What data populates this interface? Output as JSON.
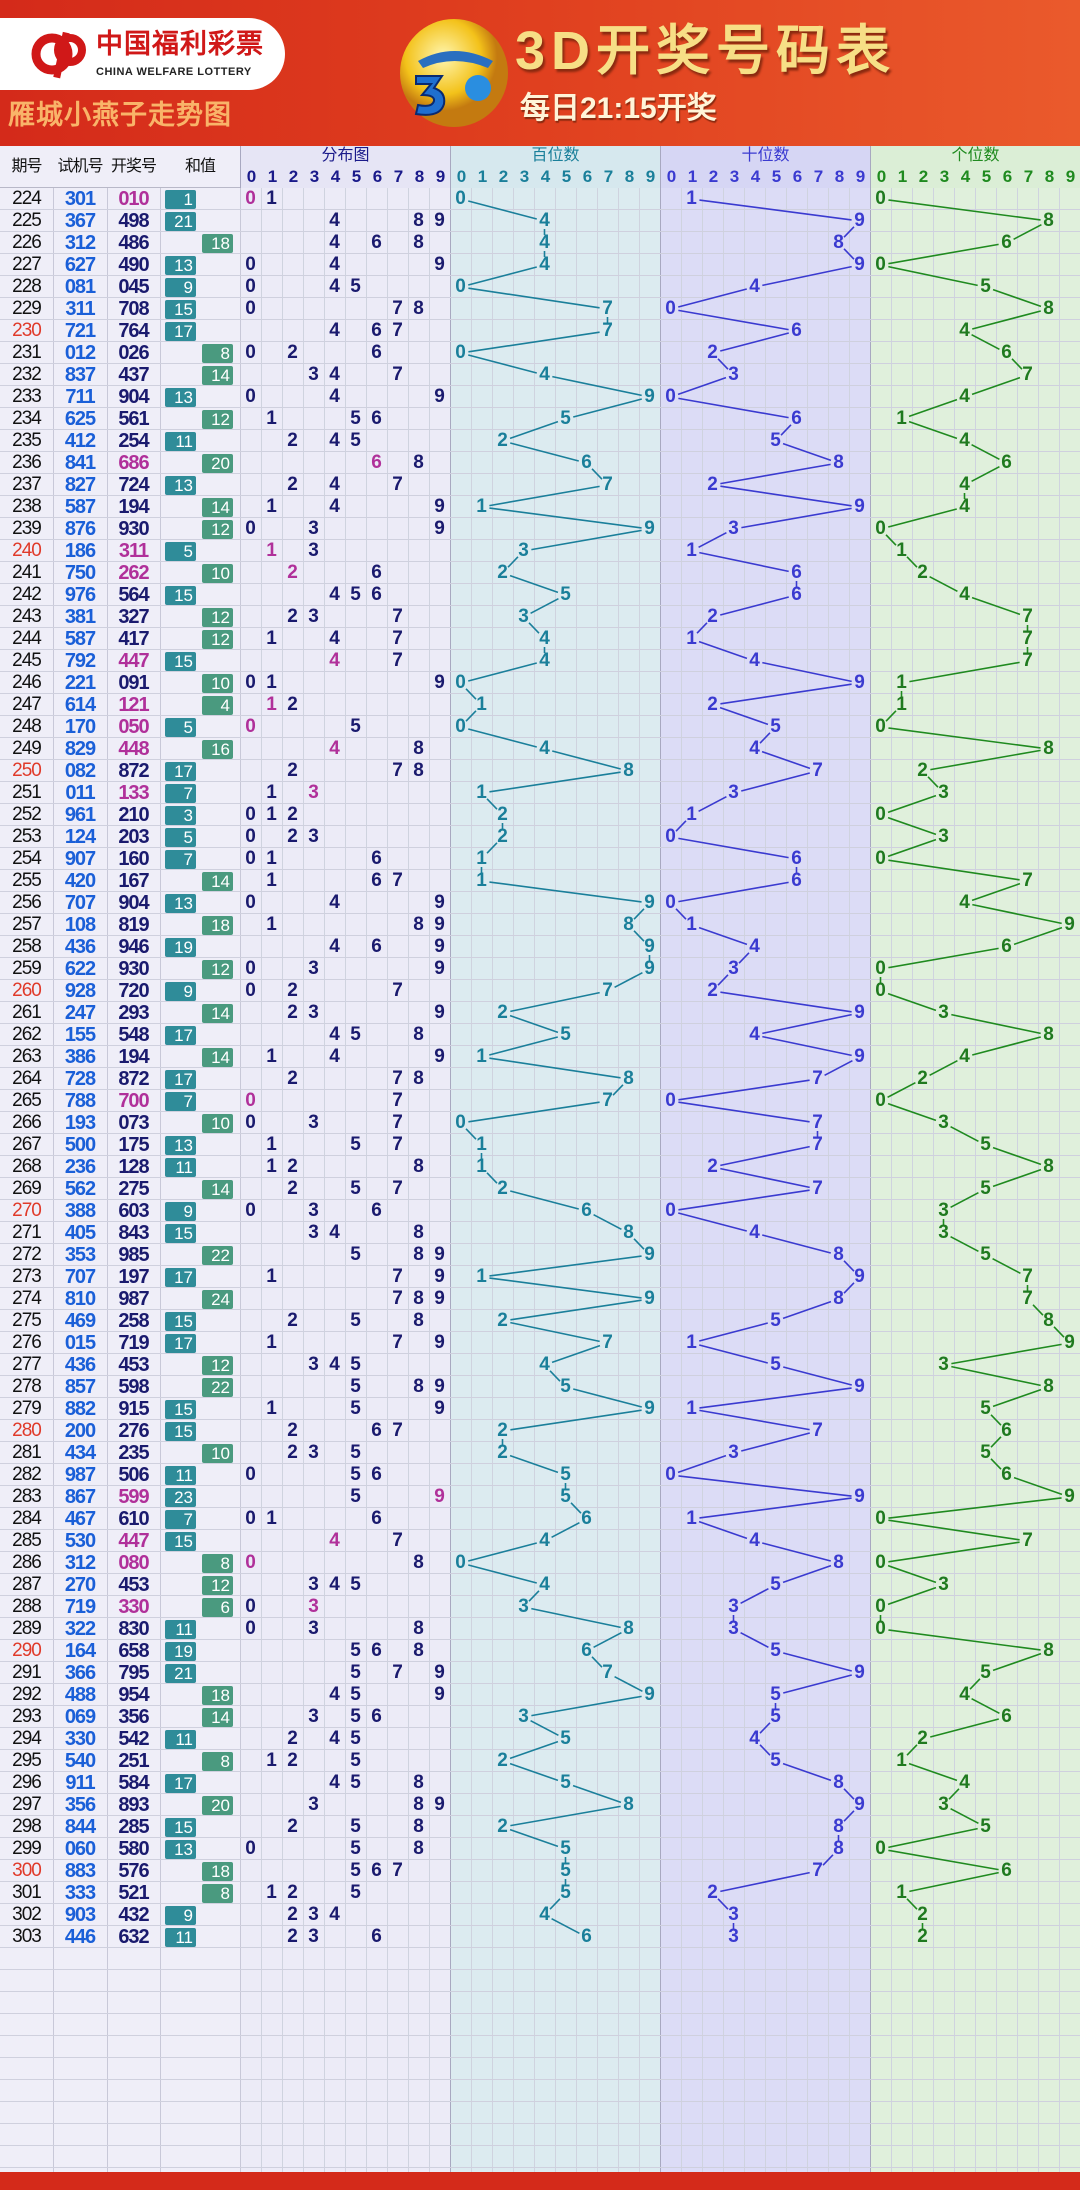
{
  "header": {
    "logo_cn": "中国福利彩票",
    "logo_en": "CHINA WELFARE LOTTERY",
    "slogan": "雁城小燕子走势图",
    "title": "3D开奖号码表",
    "subtitle": "每日21:15开奖"
  },
  "columns": {
    "period": "期号",
    "trial": "试机号",
    "draw": "开奖号",
    "sum": "和值",
    "distribution": "分布图",
    "hundreds": "百位数",
    "tens": "十位数",
    "ones": "个位数"
  },
  "digits": [
    "0",
    "1",
    "2",
    "3",
    "4",
    "5",
    "6",
    "7",
    "8",
    "9"
  ],
  "colors": {
    "header_red": "#d42a1a",
    "hundreds_line": "#1a7f9a",
    "tens_line": "#3a3ad0",
    "ones_line": "#1f8a1f",
    "repeat": "#b0309a",
    "sum_odd": "#2f8c99",
    "sum_even": "#4a9a7f",
    "period_highlight": "#e03a2a"
  },
  "rows": [
    {
      "period": "224",
      "trial": "301",
      "draw": "010",
      "sum": "1"
    },
    {
      "period": "225",
      "trial": "367",
      "draw": "498",
      "sum": "21"
    },
    {
      "period": "226",
      "trial": "312",
      "draw": "486",
      "sum": "18"
    },
    {
      "period": "227",
      "trial": "627",
      "draw": "490",
      "sum": "13"
    },
    {
      "period": "228",
      "trial": "081",
      "draw": "045",
      "sum": "9"
    },
    {
      "period": "229",
      "trial": "311",
      "draw": "708",
      "sum": "15"
    },
    {
      "period": "230",
      "trial": "721",
      "draw": "764",
      "sum": "17"
    },
    {
      "period": "231",
      "trial": "012",
      "draw": "026",
      "sum": "8"
    },
    {
      "period": "232",
      "trial": "837",
      "draw": "437",
      "sum": "14"
    },
    {
      "period": "233",
      "trial": "711",
      "draw": "904",
      "sum": "13"
    },
    {
      "period": "234",
      "trial": "625",
      "draw": "561",
      "sum": "12"
    },
    {
      "period": "235",
      "trial": "412",
      "draw": "254",
      "sum": "11"
    },
    {
      "period": "236",
      "trial": "841",
      "draw": "686",
      "sum": "20"
    },
    {
      "period": "237",
      "trial": "827",
      "draw": "724",
      "sum": "13"
    },
    {
      "period": "238",
      "trial": "587",
      "draw": "194",
      "sum": "14"
    },
    {
      "period": "239",
      "trial": "876",
      "draw": "930",
      "sum": "12"
    },
    {
      "period": "240",
      "trial": "186",
      "draw": "311",
      "sum": "5"
    },
    {
      "period": "241",
      "trial": "750",
      "draw": "262",
      "sum": "10"
    },
    {
      "period": "242",
      "trial": "976",
      "draw": "564",
      "sum": "15"
    },
    {
      "period": "243",
      "trial": "381",
      "draw": "327",
      "sum": "12"
    },
    {
      "period": "244",
      "trial": "587",
      "draw": "417",
      "sum": "12"
    },
    {
      "period": "245",
      "trial": "792",
      "draw": "447",
      "sum": "15"
    },
    {
      "period": "246",
      "trial": "221",
      "draw": "091",
      "sum": "10"
    },
    {
      "period": "247",
      "trial": "614",
      "draw": "121",
      "sum": "4"
    },
    {
      "period": "248",
      "trial": "170",
      "draw": "050",
      "sum": "5"
    },
    {
      "period": "249",
      "trial": "829",
      "draw": "448",
      "sum": "16"
    },
    {
      "period": "250",
      "trial": "082",
      "draw": "872",
      "sum": "17"
    },
    {
      "period": "251",
      "trial": "011",
      "draw": "133",
      "sum": "7"
    },
    {
      "period": "252",
      "trial": "961",
      "draw": "210",
      "sum": "3"
    },
    {
      "period": "253",
      "trial": "124",
      "draw": "203",
      "sum": "5"
    },
    {
      "period": "254",
      "trial": "907",
      "draw": "160",
      "sum": "7"
    },
    {
      "period": "255",
      "trial": "420",
      "draw": "167",
      "sum": "14"
    },
    {
      "period": "256",
      "trial": "707",
      "draw": "904",
      "sum": "13"
    },
    {
      "period": "257",
      "trial": "108",
      "draw": "819",
      "sum": "18"
    },
    {
      "period": "258",
      "trial": "436",
      "draw": "946",
      "sum": "19"
    },
    {
      "period": "259",
      "trial": "622",
      "draw": "930",
      "sum": "12"
    },
    {
      "period": "260",
      "trial": "928",
      "draw": "720",
      "sum": "9"
    },
    {
      "period": "261",
      "trial": "247",
      "draw": "293",
      "sum": "14"
    },
    {
      "period": "262",
      "trial": "155",
      "draw": "548",
      "sum": "17"
    },
    {
      "period": "263",
      "trial": "386",
      "draw": "194",
      "sum": "14"
    },
    {
      "period": "264",
      "trial": "728",
      "draw": "872",
      "sum": "17"
    },
    {
      "period": "265",
      "trial": "788",
      "draw": "700",
      "sum": "7"
    },
    {
      "period": "266",
      "trial": "193",
      "draw": "073",
      "sum": "10"
    },
    {
      "period": "267",
      "trial": "500",
      "draw": "175",
      "sum": "13"
    },
    {
      "period": "268",
      "trial": "236",
      "draw": "128",
      "sum": "11"
    },
    {
      "period": "269",
      "trial": "562",
      "draw": "275",
      "sum": "14"
    },
    {
      "period": "270",
      "trial": "388",
      "draw": "603",
      "sum": "9"
    },
    {
      "period": "271",
      "trial": "405",
      "draw": "843",
      "sum": "15"
    },
    {
      "period": "272",
      "trial": "353",
      "draw": "985",
      "sum": "22"
    },
    {
      "period": "273",
      "trial": "707",
      "draw": "197",
      "sum": "17"
    },
    {
      "period": "274",
      "trial": "810",
      "draw": "987",
      "sum": "24"
    },
    {
      "period": "275",
      "trial": "469",
      "draw": "258",
      "sum": "15"
    },
    {
      "period": "276",
      "trial": "015",
      "draw": "719",
      "sum": "17"
    },
    {
      "period": "277",
      "trial": "436",
      "draw": "453",
      "sum": "12"
    },
    {
      "period": "278",
      "trial": "857",
      "draw": "598",
      "sum": "22"
    },
    {
      "period": "279",
      "trial": "882",
      "draw": "915",
      "sum": "15"
    },
    {
      "period": "280",
      "trial": "200",
      "draw": "276",
      "sum": "15"
    },
    {
      "period": "281",
      "trial": "434",
      "draw": "235",
      "sum": "10"
    },
    {
      "period": "282",
      "trial": "987",
      "draw": "506",
      "sum": "11"
    },
    {
      "period": "283",
      "trial": "867",
      "draw": "599",
      "sum": "23"
    },
    {
      "period": "284",
      "trial": "467",
      "draw": "610",
      "sum": "7"
    },
    {
      "period": "285",
      "trial": "530",
      "draw": "447",
      "sum": "15"
    },
    {
      "period": "286",
      "trial": "312",
      "draw": "080",
      "sum": "8"
    },
    {
      "period": "287",
      "trial": "270",
      "draw": "453",
      "sum": "12"
    },
    {
      "period": "288",
      "trial": "719",
      "draw": "330",
      "sum": "6"
    },
    {
      "period": "289",
      "trial": "322",
      "draw": "830",
      "sum": "11"
    },
    {
      "period": "290",
      "trial": "164",
      "draw": "658",
      "sum": "19"
    },
    {
      "period": "291",
      "trial": "366",
      "draw": "795",
      "sum": "21"
    },
    {
      "period": "292",
      "trial": "488",
      "draw": "954",
      "sum": "18"
    },
    {
      "period": "293",
      "trial": "069",
      "draw": "356",
      "sum": "14"
    },
    {
      "period": "294",
      "trial": "330",
      "draw": "542",
      "sum": "11"
    },
    {
      "period": "295",
      "trial": "540",
      "draw": "251",
      "sum": "8"
    },
    {
      "period": "296",
      "trial": "911",
      "draw": "584",
      "sum": "17"
    },
    {
      "period": "297",
      "trial": "356",
      "draw": "893",
      "sum": "20"
    },
    {
      "period": "298",
      "trial": "844",
      "draw": "285",
      "sum": "15"
    },
    {
      "period": "299",
      "trial": "060",
      "draw": "580",
      "sum": "13"
    },
    {
      "period": "300",
      "trial": "883",
      "draw": "576",
      "sum": "18"
    },
    {
      "period": "301",
      "trial": "333",
      "draw": "521",
      "sum": "8"
    },
    {
      "period": "302",
      "trial": "903",
      "draw": "432",
      "sum": "9"
    },
    {
      "period": "303",
      "trial": "446",
      "draw": "632",
      "sum": "11"
    }
  ]
}
